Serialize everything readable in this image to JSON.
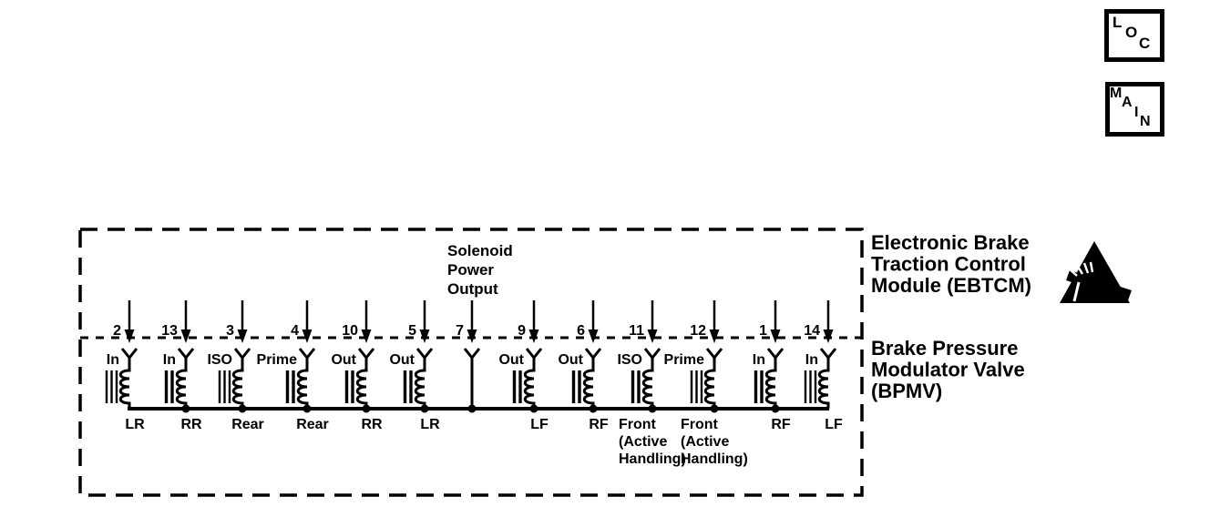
{
  "nav_buttons": {
    "loc": {
      "label": "LOC",
      "letters": [
        "L",
        "O",
        "C"
      ]
    },
    "main": {
      "label": "MAIN",
      "letters": [
        "M",
        "A",
        "I",
        "N"
      ]
    }
  },
  "diagram": {
    "modules": {
      "ebtcm": {
        "name_lines": [
          "Electronic Brake",
          "Traction Control",
          "Module (EBTCM)"
        ]
      },
      "bpmv": {
        "name_lines": [
          "Brake Pressure",
          "Modulator Valve",
          "(BPMV)"
        ]
      }
    },
    "solenoid_power_output_lines": [
      "Solenoid",
      "Power",
      "Output"
    ],
    "icons": {
      "esd": "esd-sensitive-device-warning"
    },
    "colors": {
      "ink": "#000000",
      "background": "#ffffff"
    },
    "solenoids": [
      {
        "pin": "2",
        "type": "In",
        "circuit": "LR"
      },
      {
        "pin": "13",
        "type": "In",
        "circuit": "RR"
      },
      {
        "pin": "3",
        "type": "ISO",
        "circuit": "Rear"
      },
      {
        "pin": "4",
        "type": "Prime",
        "circuit": "Rear"
      },
      {
        "pin": "10",
        "type": "Out",
        "circuit": "RR"
      },
      {
        "pin": "5",
        "type": "Out",
        "circuit": "LR"
      },
      {
        "pin": "7",
        "type": "",
        "circuit": ""
      },
      {
        "pin": "9",
        "type": "Out",
        "circuit": "LF"
      },
      {
        "pin": "6",
        "type": "Out",
        "circuit": "RF"
      },
      {
        "pin": "11",
        "type": "ISO",
        "circuit_lines": [
          "Front",
          "(Active",
          "Handling)"
        ]
      },
      {
        "pin": "12",
        "type": "Prime",
        "circuit_lines": [
          "Front",
          "(Active",
          "Handling)"
        ]
      },
      {
        "pin": "1",
        "type": "In",
        "circuit": "RF"
      },
      {
        "pin": "14",
        "type": "In",
        "circuit": "LF"
      }
    ]
  }
}
